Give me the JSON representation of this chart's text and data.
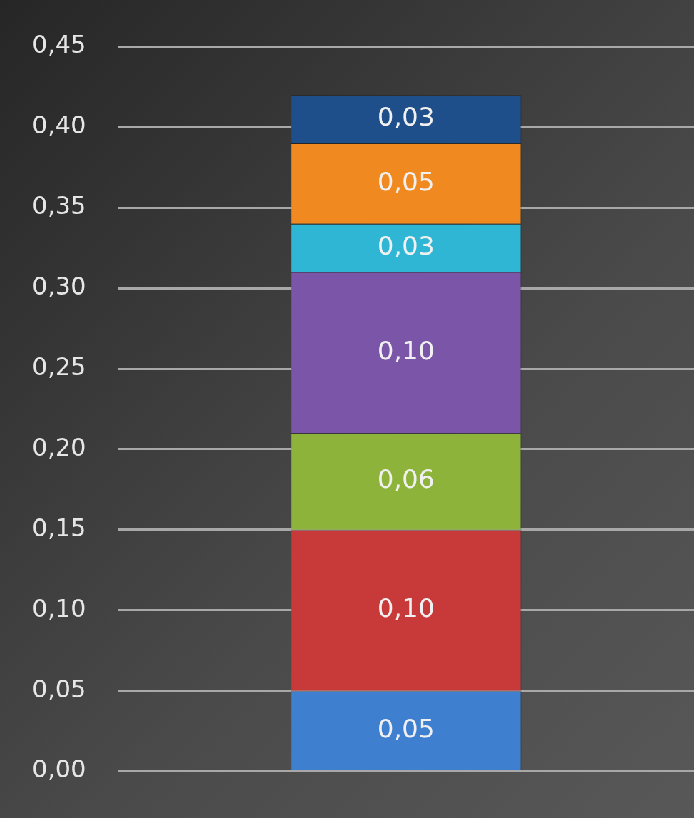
{
  "chart_data": {
    "type": "bar",
    "stacked": true,
    "categories": [
      null
    ],
    "series": [
      {
        "color": "#3f7fd0",
        "values": [
          0.05
        ],
        "value_labels": [
          "0,05"
        ]
      },
      {
        "color": "#c83a3a",
        "values": [
          0.1
        ],
        "value_labels": [
          "0,10"
        ]
      },
      {
        "color": "#8db33a",
        "values": [
          0.06
        ],
        "value_labels": [
          "0,06"
        ]
      },
      {
        "color": "#7a55a8",
        "values": [
          0.1
        ],
        "value_labels": [
          "0,10"
        ]
      },
      {
        "color": "#2eb6d4",
        "values": [
          0.03
        ],
        "value_labels": [
          "0,03"
        ]
      },
      {
        "color": "#f08a20",
        "values": [
          0.05
        ],
        "value_labels": [
          "0,05"
        ]
      },
      {
        "color": "#1f4f8a",
        "values": [
          0.03
        ],
        "value_labels": [
          "0,03"
        ]
      }
    ],
    "ylim": [
      0,
      0.45
    ],
    "yticks": [
      {
        "value": 0,
        "label": "0,00"
      },
      {
        "value": 0.05,
        "label": "0,05"
      },
      {
        "value": 0.1,
        "label": "0,10"
      },
      {
        "value": 0.15,
        "label": "0,15"
      },
      {
        "value": 0.2,
        "label": "0,20"
      },
      {
        "value": 0.25,
        "label": "0,25"
      },
      {
        "value": 0.3,
        "label": "0,30"
      },
      {
        "value": 0.35,
        "label": "0,35"
      },
      {
        "value": 0.4,
        "label": "0,40"
      },
      {
        "value": 0.45,
        "label": "0,45"
      }
    ],
    "grid": "y",
    "legend": false,
    "tick_labels": "y"
  }
}
